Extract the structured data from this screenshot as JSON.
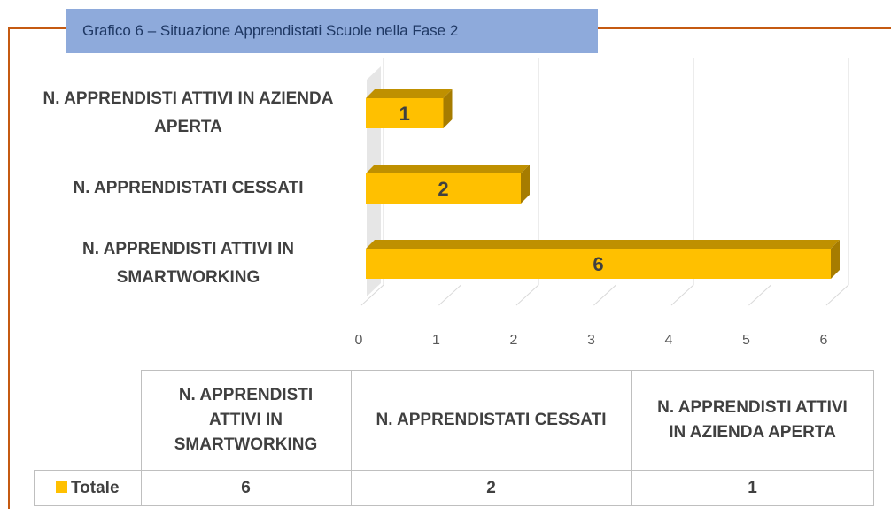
{
  "chart_data": {
    "type": "bar",
    "orientation": "horizontal",
    "title": "Grafico 6 – Situazione Apprendistati Scuole nella Fase 2",
    "categories": [
      "N. APPRENDISTI ATTIVI IN SMARTWORKING",
      "N. APPRENDISTATI CESSATI",
      "N. APPRENDISTI  ATTIVI  IN AZIENDA APERTA"
    ],
    "series": [
      {
        "name": "Totale",
        "color": "#ffc000",
        "values": [
          6,
          2,
          1
        ]
      }
    ],
    "xlim": [
      0,
      6
    ],
    "xticks": [
      0,
      1,
      2,
      3,
      4,
      5,
      6
    ],
    "grid": true,
    "data_table": true
  }
}
